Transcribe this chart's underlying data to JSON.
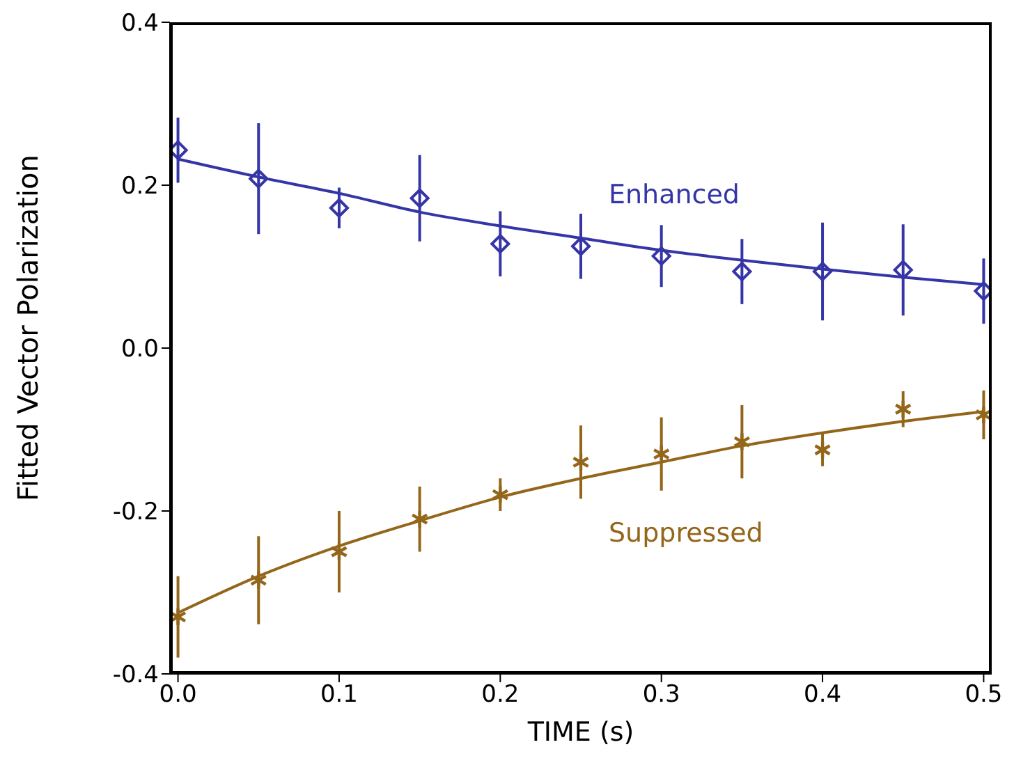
{
  "chart_data": {
    "type": "scatter",
    "xlabel": "TIME (s)",
    "ylabel": "Fitted Vector Polarization",
    "x": [
      0,
      0.05,
      0.1,
      0.15,
      0.2,
      0.25,
      0.3,
      0.35,
      0.4,
      0.45,
      0.5
    ],
    "series": [
      {
        "name": "Enhanced",
        "color": "#3535a8",
        "marker": "diamond",
        "values": [
          0.243,
          0.208,
          0.172,
          0.184,
          0.128,
          0.125,
          0.113,
          0.094,
          0.094,
          0.096,
          0.07
        ],
        "errors": [
          0.04,
          0.068,
          0.025,
          0.053,
          0.04,
          0.04,
          0.038,
          0.04,
          0.06,
          0.056,
          0.04
        ]
      },
      {
        "name": "Suppressed",
        "color": "#94661a",
        "marker": "cross",
        "values": [
          -0.33,
          -0.285,
          -0.25,
          -0.21,
          -0.18,
          -0.14,
          -0.13,
          -0.115,
          -0.125,
          -0.075,
          -0.082
        ],
        "errors": [
          0.05,
          0.054,
          0.05,
          0.04,
          0.02,
          0.045,
          0.045,
          0.045,
          0.02,
          0.022,
          0.03
        ]
      },
      {
        "type": "line",
        "color": "#3535a8",
        "marker": "none",
        "values": [
          0.232,
          0.21,
          0.19,
          0.167,
          0.15,
          0.135,
          0.12,
          0.108,
          0.097,
          0.087,
          0.078
        ]
      },
      {
        "type": "line",
        "color": "#94661a",
        "marker": "none",
        "values": [
          -0.325,
          -0.28,
          -0.243,
          -0.212,
          -0.183,
          -0.16,
          -0.14,
          -0.12,
          -0.104,
          -0.09,
          -0.078
        ]
      }
    ],
    "xlim": [
      -0.005,
      0.505
    ],
    "xticks": [
      {
        "value": 0,
        "label": "0.0"
      },
      0.1,
      0.2,
      0.3,
      0.4,
      0.5
    ],
    "ylim": [
      -0.4,
      0.4
    ],
    "yticks": [
      -0.4,
      -0.2,
      {
        "value": 0,
        "label": "0.0"
      },
      0.2,
      0.4
    ],
    "grid": false,
    "legend": false
  }
}
